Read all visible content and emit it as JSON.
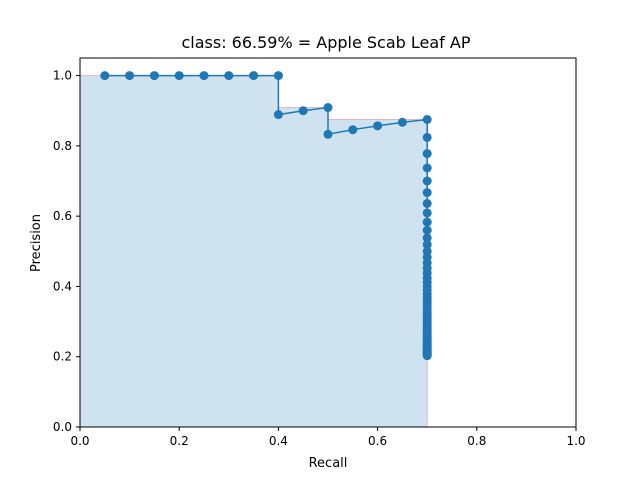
{
  "chart_data": {
    "type": "line",
    "title": "class: 66.59% = Apple Scab Leaf AP",
    "xlabel": "Recall",
    "ylabel": "Precision",
    "xlim": [
      0,
      1
    ],
    "ylim": [
      0,
      1.05
    ],
    "x_ticks": [
      "0.0",
      "0.2",
      "0.4",
      "0.6",
      "0.8",
      "1.0"
    ],
    "y_ticks": [
      "0.0",
      "0.2",
      "0.4",
      "0.6",
      "0.8",
      "1.0"
    ],
    "grid": false,
    "colors": {
      "series": "#1f77b4",
      "area_fill": "#cfe2f0",
      "area_edge": "#e8b4c4"
    },
    "series": [
      {
        "recall": [
          0.05,
          0.1,
          0.15,
          0.2,
          0.25,
          0.3,
          0.35,
          0.4,
          0.4,
          0.45,
          0.5,
          0.5,
          0.55,
          0.6,
          0.65,
          0.7,
          0.7,
          0.7,
          0.7,
          0.7,
          0.7,
          0.7,
          0.7,
          0.7,
          0.7,
          0.7,
          0.7,
          0.7,
          0.7,
          0.7,
          0.7,
          0.7,
          0.7,
          0.7,
          0.7,
          0.7,
          0.7,
          0.7,
          0.7,
          0.7,
          0.7,
          0.7,
          0.7,
          0.7,
          0.7,
          0.7,
          0.7,
          0.7,
          0.7,
          0.7,
          0.7,
          0.7,
          0.7,
          0.7,
          0.7,
          0.7,
          0.7,
          0.7,
          0.7,
          0.7,
          0.7,
          0.7,
          0.7,
          0.7,
          0.7,
          0.7,
          0.7,
          0.7,
          0.7
        ],
        "precision": [
          1.0,
          1.0,
          1.0,
          1.0,
          1.0,
          1.0,
          1.0,
          1.0,
          0.889,
          0.9,
          0.909,
          0.833,
          0.846,
          0.857,
          0.867,
          0.875,
          0.824,
          0.778,
          0.737,
          0.7,
          0.667,
          0.636,
          0.609,
          0.583,
          0.56,
          0.538,
          0.519,
          0.5,
          0.483,
          0.467,
          0.452,
          0.438,
          0.424,
          0.412,
          0.4,
          0.389,
          0.378,
          0.368,
          0.359,
          0.35,
          0.341,
          0.333,
          0.326,
          0.318,
          0.311,
          0.304,
          0.298,
          0.292,
          0.286,
          0.28,
          0.275,
          0.269,
          0.264,
          0.259,
          0.255,
          0.25,
          0.246,
          0.241,
          0.237,
          0.233,
          0.23,
          0.226,
          0.222,
          0.219,
          0.215,
          0.212,
          0.209,
          0.206,
          0.203
        ]
      }
    ],
    "area": {
      "recall": [
        0.0,
        0.4,
        0.4,
        0.5,
        0.5,
        0.7,
        0.7
      ],
      "precision": [
        1.0,
        1.0,
        0.909,
        0.909,
        0.875,
        0.875,
        0.0
      ]
    }
  }
}
